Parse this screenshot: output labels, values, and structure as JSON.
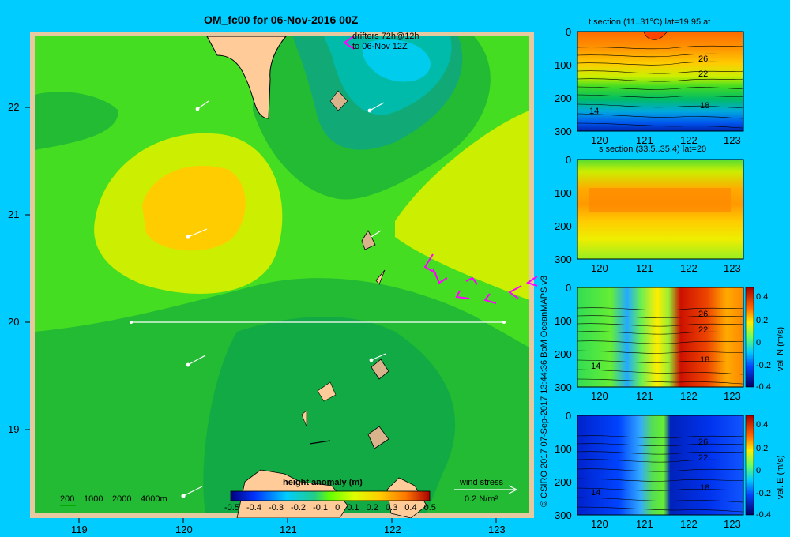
{
  "main_map": {
    "title": "OM_fc00 for 06-Nov-2016 00Z",
    "drifters_line1": "drifters 72h@12h",
    "drifters_line2": "to 06-Nov 12Z",
    "x_ticks": [
      "119",
      "120",
      "121",
      "122",
      "123"
    ],
    "y_ticks": [
      "22",
      "21",
      "20",
      "19"
    ],
    "depth_legend": [
      "200",
      "1000",
      "2000",
      "4000m"
    ],
    "colorbar_title": "height anomaly (m)",
    "colorbar_ticks": [
      "-0.5",
      "-0.4",
      "-0.3",
      "-0.2",
      "-0.1",
      "0",
      "0.1",
      "0.2",
      "0.3",
      "0.4",
      "0.5"
    ],
    "wind_stress_label": "wind stress",
    "wind_stress_scale": "0.2 N/m²"
  },
  "credit": "© CSIRO 2017   07-Sep-2017 13:44:36 BoM OceanMAPS v3",
  "panels": [
    {
      "title": "t section (11..31°C) lat=19.95 at",
      "contour_labels": [
        "26",
        "22",
        "18",
        "14"
      ]
    },
    {
      "title": "s section (33.5..35.4) lat=20",
      "contour_labels": []
    },
    {
      "title": "",
      "colorbar_label": "vel. N (m/s)",
      "contour_labels": [
        "26",
        "22",
        "18",
        "14"
      ]
    },
    {
      "title": "",
      "colorbar_label": "vel. E (m/s)",
      "contour_labels": [
        "26",
        "22",
        "18",
        "14"
      ]
    }
  ],
  "panel_axes": {
    "x_ticks": [
      "120",
      "121",
      "122",
      "123"
    ],
    "y_ticks": [
      "0",
      "100",
      "200",
      "300"
    ],
    "vel_ticks": [
      "0.4",
      "0.2",
      "0",
      "-0.2",
      "-0.4"
    ]
  }
}
